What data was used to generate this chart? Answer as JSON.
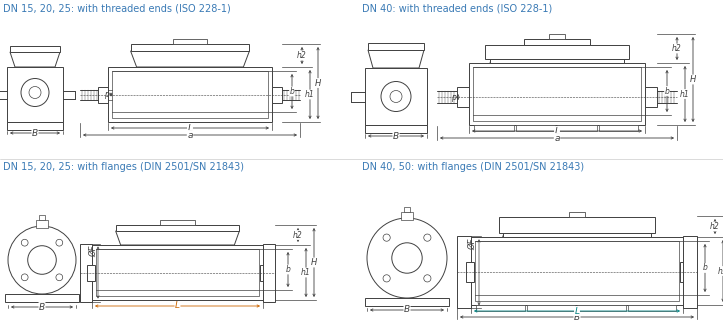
{
  "title_color": "#3a7ab5",
  "line_color": "#404040",
  "bg_color": "#ffffff",
  "title1": "DN 15, 20, 25: with threaded ends (ISO 228-1)",
  "title2": "DN 40: with threaded ends (ISO 228-1)",
  "title3": "DN 15, 20, 25: with flanges (DIN 2501/SN 21843)",
  "title4": "DN 40, 50: with flanges (DIN 2501/SN 21843)",
  "orange_color": "#cc6600",
  "teal_color": "#008080",
  "gray_color": "#888888"
}
